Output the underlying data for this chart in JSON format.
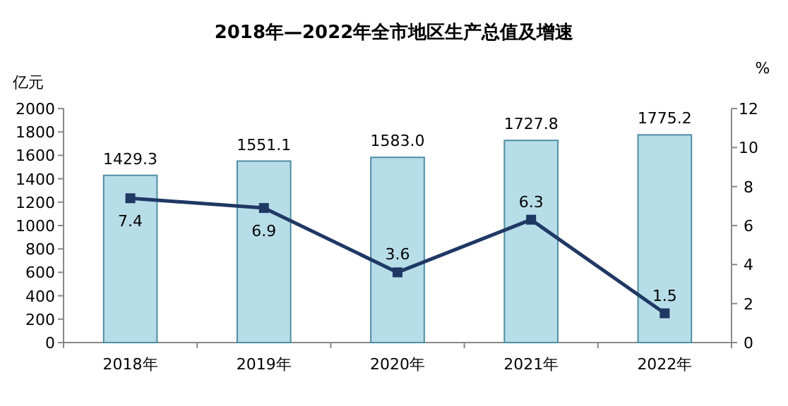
{
  "chart_data": {
    "type": "bar",
    "title": "2018年—2022年全市地区生产总值及增速",
    "categories": [
      "2018年",
      "2019年",
      "2020年",
      "2021年",
      "2022年"
    ],
    "series": [
      {
        "color": "#b7dde8",
        "values": [
          1429.3,
          1551.1,
          1583.0,
          1727.8,
          1775.2
        ],
        "value_labels": [
          "1429.3",
          "1551.1",
          "1583.0",
          "1727.8",
          "1775.2"
        ]
      },
      {
        "type": "line",
        "axis": "y2",
        "color": "#1f3864",
        "values": [
          7.4,
          6.9,
          3.6,
          6.3,
          1.5
        ]
      }
    ],
    "ylabel": "亿元",
    "y2label": "%",
    "ylim": [
      0,
      2000
    ],
    "yticks": [
      0,
      200,
      400,
      600,
      800,
      1000,
      1200,
      1400,
      1600,
      1800,
      2000
    ],
    "y2lim": [
      0,
      12
    ],
    "y2ticks": [
      0,
      2,
      4,
      6,
      8,
      10,
      12
    ],
    "data_labels": true,
    "marker": "square",
    "line_style": "solid",
    "grid": false
  }
}
